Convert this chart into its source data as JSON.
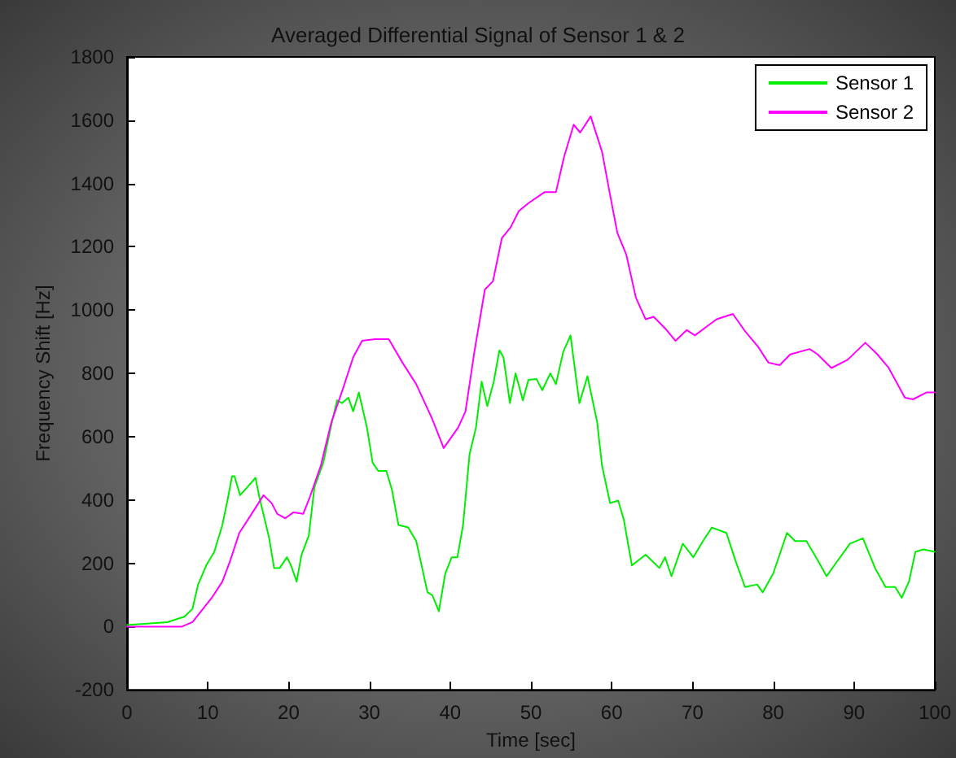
{
  "chart_data": {
    "type": "line",
    "title": "Averaged Differential Signal of Sensor 1 & 2",
    "xlabel": "Time [sec]",
    "ylabel": "Frequency Shift [Hz]",
    "xlim": [
      0,
      100
    ],
    "xticks": [
      0,
      10,
      20,
      30,
      40,
      50,
      60,
      70,
      80,
      90,
      100
    ],
    "ylim": [
      -200,
      1800
    ],
    "yticks": [
      -200,
      0,
      200,
      400,
      600,
      800,
      1000,
      1200,
      1400,
      1600,
      1800
    ],
    "grid": false,
    "legend": "top right",
    "marker": "none",
    "line_style": "solid",
    "series": [
      {
        "name": "Sensor 1",
        "color": "#00ee00",
        "x": [
          0,
          5,
          7.1,
          8.1,
          8.8,
          9.8,
          10.8,
          11.8,
          12.5,
          13,
          13.3,
          14,
          14.9,
          15.9,
          16.4,
          17.6,
          18.2,
          18.9,
          19.8,
          20.3,
          21,
          21.6,
          22.5,
          23.2,
          24.3,
          25.3,
          26,
          26.6,
          27.4,
          28,
          28.7,
          29.7,
          30.4,
          31.1,
          32.1,
          32.8,
          33.6,
          34.8,
          35.8,
          37.2,
          37.8,
          38.6,
          39.4,
          40.2,
          40.9,
          41.6,
          42.4,
          43.2,
          43.9,
          44.6,
          45.4,
          46.1,
          46.6,
          47.4,
          48.1,
          49,
          49.7,
          50.7,
          51.4,
          52.4,
          53.1,
          54,
          54.9,
          56,
          57,
          58.2,
          58.8,
          59.8,
          60.8,
          61.5,
          62.5,
          64.2,
          65.9,
          66.6,
          67.4,
          68.8,
          70.1,
          71.3,
          72.4,
          74.2,
          75.3,
          76.5,
          78,
          78.7,
          80,
          81.7,
          82.7,
          84.1,
          85.5,
          86.6,
          87.8,
          89.5,
          91.1,
          92.6,
          93.9,
          95.1,
          95.9,
          96.8,
          97.6,
          98.6,
          100
        ],
        "values": [
          5,
          14,
          31,
          56,
          133,
          193,
          236,
          321,
          407,
          475,
          475,
          415,
          441,
          470,
          407,
          279,
          185,
          185,
          219,
          193,
          142,
          227,
          287,
          441,
          518,
          638,
          715,
          706,
          723,
          680,
          740,
          629,
          518,
          492,
          492,
          432,
          321,
          313,
          270,
          108,
          99,
          48,
          168,
          219,
          219,
          321,
          544,
          629,
          774,
          697,
          774,
          873,
          851,
          706,
          800,
          715,
          780,
          782,
          747,
          800,
          766,
          868,
          920,
          706,
          791,
          646,
          509,
          390,
          398,
          338,
          193,
          227,
          185,
          219,
          159,
          262,
          219,
          270,
          313,
          296,
          210,
          125,
          133,
          108,
          168,
          296,
          270,
          270,
          210,
          159,
          202,
          262,
          279,
          185,
          125,
          125,
          91,
          142,
          236,
          244,
          236
        ]
      },
      {
        "name": "Sensor 2",
        "color": "#ff00ff",
        "x": [
          0,
          6.8,
          8.1,
          10.5,
          11.8,
          12.8,
          13.9,
          15.2,
          16.9,
          17.9,
          18.6,
          19.6,
          20.6,
          21.8,
          22.6,
          24,
          25.3,
          26.7,
          28,
          29.1,
          30.7,
          32.4,
          34.1,
          35.8,
          37.8,
          39.2,
          41,
          41.9,
          43,
          44.3,
          45.3,
          46.4,
          47.5,
          48.5,
          49.7,
          51.7,
          53.1,
          54.1,
          55.3,
          56.1,
          57.4,
          58.8,
          59.8,
          60.7,
          61.8,
          63,
          64.2,
          65.2,
          66.8,
          67.9,
          69.3,
          70.3,
          71.6,
          73,
          75,
          76.4,
          78.1,
          79.4,
          80.8,
          82.1,
          84.5,
          85.5,
          87.2,
          89.2,
          91.4,
          92.9,
          94.3,
          96.3,
          97.3,
          99,
          100
        ],
        "values": [
          0,
          0,
          14,
          91,
          142,
          210,
          296,
          347,
          415,
          390,
          356,
          342,
          361,
          356,
          407,
          509,
          646,
          749,
          851,
          903,
          908,
          908,
          834,
          766,
          655,
          564,
          629,
          680,
          868,
          1065,
          1091,
          1227,
          1262,
          1313,
          1338,
          1373,
          1373,
          1484,
          1586,
          1561,
          1612,
          1501,
          1364,
          1244,
          1176,
          1039,
          971,
          979,
          937,
          903,
          937,
          920,
          945,
          971,
          988,
          937,
          885,
          834,
          826,
          860,
          877,
          860,
          817,
          843,
          897,
          860,
          817,
          723,
          718,
          740,
          740
        ]
      }
    ]
  }
}
